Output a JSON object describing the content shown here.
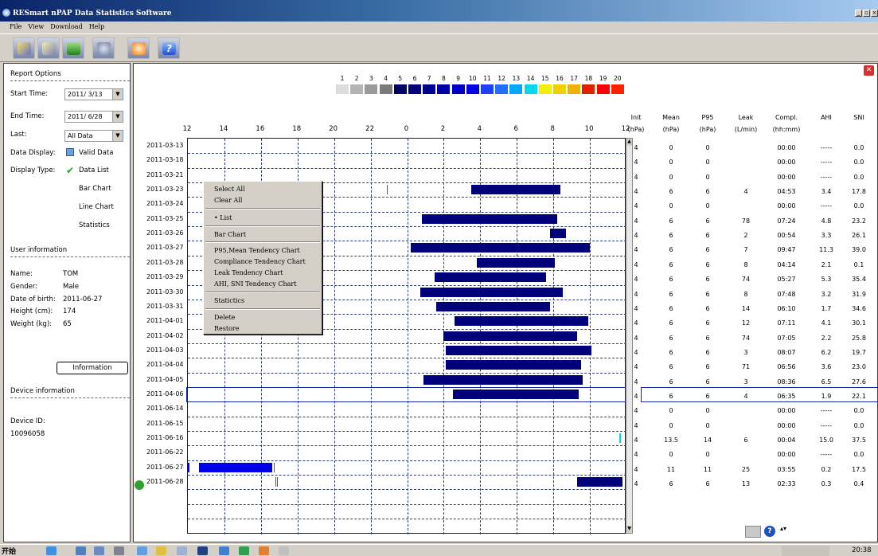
{
  "window": {
    "title": "RESmart nPAP Data Statistics Software"
  },
  "menu": [
    "File",
    "View",
    "Download",
    "Help"
  ],
  "toolbar": [
    {
      "icon": "import-icon"
    },
    {
      "icon": "export-icon"
    },
    {
      "icon": "download-icon"
    },
    {
      "icon": "settings-icon"
    },
    {
      "icon": "refresh-icon"
    },
    {
      "icon": "help-icon"
    }
  ],
  "left": {
    "report_options": "Report Options",
    "start_label": "Start Time:",
    "start_value": "2011/ 3/13",
    "end_label": "End Time:",
    "end_value": "2011/ 6/28",
    "last_label": "Last:",
    "last_value": "All Data",
    "display_data_label": "Data Display:",
    "display_data_value": "Valid Data",
    "display_type_label": "Display Type:",
    "display_types": [
      "Data List",
      "Bar Chart",
      "Line Chart",
      "Statistics"
    ],
    "user_info": "User information",
    "name_label": "Name:",
    "name_value": "TOM",
    "gender_label": "Gender:",
    "gender_value": "Male",
    "dob_label": "Date of birth:",
    "dob_value": "2011-06-27",
    "height_label": "Height (cm):",
    "height_value": "174",
    "weight_label": "Weight (kg):",
    "weight_value": "65",
    "info_button": "Information",
    "device_info": "Device information",
    "device_id_label": "Device ID:",
    "device_id_value": "10096058"
  },
  "legend": {
    "numbers": [
      "1",
      "2",
      "3",
      "4",
      "5",
      "6",
      "7",
      "8",
      "9",
      "10",
      "11",
      "12",
      "13",
      "14",
      "15",
      "16",
      "17",
      "18",
      "19",
      "20"
    ],
    "colors": [
      "#dcdcdc",
      "#b4b4b4",
      "#9a9a9a",
      "#7a7a7a",
      "#000066",
      "#00007a",
      "#000090",
      "#0000a8",
      "#0000c8",
      "#0000e8",
      "#2040ff",
      "#2070ff",
      "#00a8ff",
      "#00d8f0",
      "#f0f000",
      "#f0d000",
      "#f0b000",
      "#e02000",
      "#ff0000",
      "#ff2000"
    ]
  },
  "chart": {
    "ticks": [
      "12",
      "14",
      "16",
      "18",
      "20",
      "22",
      "0",
      "2",
      "4",
      "6",
      "8",
      "10",
      "12"
    ]
  },
  "table": {
    "headers": [
      [
        "Init",
        "(hPa)"
      ],
      [
        "Mean",
        "(hPa)"
      ],
      [
        "P95",
        "(hPa)"
      ],
      [
        "Leak",
        "(L/min)"
      ],
      [
        "Compl.",
        "(hh:mm)"
      ],
      [
        "AHI",
        ""
      ],
      [
        "SNI",
        ""
      ]
    ],
    "rows": [
      {
        "date": "2011-03-13",
        "init": "4",
        "mean": "0",
        "p95": "0",
        "leak": "",
        "compl": "00:00",
        "ahi": "-----",
        "sni": "0.0"
      },
      {
        "date": "2011-03-18",
        "init": "4",
        "mean": "0",
        "p95": "0",
        "leak": "",
        "compl": "00:00",
        "ahi": "-----",
        "sni": "0.0"
      },
      {
        "date": "2011-03-21",
        "init": "4",
        "mean": "0",
        "p95": "0",
        "leak": "",
        "compl": "00:00",
        "ahi": "-----",
        "sni": "0.0"
      },
      {
        "date": "2011-03-23",
        "init": "4",
        "mean": "6",
        "p95": "6",
        "leak": "4",
        "compl": "04:53",
        "ahi": "3.4",
        "sni": "17.8"
      },
      {
        "date": "2011-03-24",
        "init": "4",
        "mean": "0",
        "p95": "0",
        "leak": "",
        "compl": "00:00",
        "ahi": "-----",
        "sni": "0.0"
      },
      {
        "date": "2011-03-25",
        "init": "4",
        "mean": "6",
        "p95": "6",
        "leak": "78",
        "compl": "07:24",
        "ahi": "4.8",
        "sni": "23.2"
      },
      {
        "date": "2011-03-26",
        "init": "4",
        "mean": "6",
        "p95": "6",
        "leak": "2",
        "compl": "00:54",
        "ahi": "3.3",
        "sni": "26.1"
      },
      {
        "date": "2011-03-27",
        "init": "4",
        "mean": "6",
        "p95": "6",
        "leak": "7",
        "compl": "09:47",
        "ahi": "11.3",
        "sni": "39.0"
      },
      {
        "date": "2011-03-28",
        "init": "4",
        "mean": "6",
        "p95": "6",
        "leak": "8",
        "compl": "04:14",
        "ahi": "2.1",
        "sni": "0.1"
      },
      {
        "date": "2011-03-29",
        "init": "4",
        "mean": "6",
        "p95": "6",
        "leak": "74",
        "compl": "05:27",
        "ahi": "5.3",
        "sni": "35.4"
      },
      {
        "date": "2011-03-30",
        "init": "4",
        "mean": "6",
        "p95": "6",
        "leak": "8",
        "compl": "07:48",
        "ahi": "3.2",
        "sni": "31.9"
      },
      {
        "date": "2011-03-31",
        "init": "4",
        "mean": "6",
        "p95": "6",
        "leak": "14",
        "compl": "06:10",
        "ahi": "1.7",
        "sni": "34.6"
      },
      {
        "date": "2011-04-01",
        "init": "4",
        "mean": "6",
        "p95": "6",
        "leak": "12",
        "compl": "07:11",
        "ahi": "4.1",
        "sni": "30.1"
      },
      {
        "date": "2011-04-02",
        "init": "4",
        "mean": "6",
        "p95": "6",
        "leak": "74",
        "compl": "07:05",
        "ahi": "2.2",
        "sni": "25.8"
      },
      {
        "date": "2011-04-03",
        "init": "4",
        "mean": "6",
        "p95": "6",
        "leak": "3",
        "compl": "08:07",
        "ahi": "6.2",
        "sni": "19.7"
      },
      {
        "date": "2011-04-04",
        "init": "4",
        "mean": "6",
        "p95": "6",
        "leak": "71",
        "compl": "06:56",
        "ahi": "3.6",
        "sni": "23.0"
      },
      {
        "date": "2011-04-05",
        "init": "4",
        "mean": "6",
        "p95": "6",
        "leak": "3",
        "compl": "08:36",
        "ahi": "6.5",
        "sni": "27.6"
      },
      {
        "date": "2011-04-06",
        "init": "4",
        "mean": "6",
        "p95": "6",
        "leak": "4",
        "compl": "06:35",
        "ahi": "1.9",
        "sni": "22.1"
      },
      {
        "date": "2011-06-14",
        "init": "4",
        "mean": "0",
        "p95": "0",
        "leak": "",
        "compl": "00:00",
        "ahi": "-----",
        "sni": "0.0"
      },
      {
        "date": "2011-06-15",
        "init": "4",
        "mean": "0",
        "p95": "0",
        "leak": "",
        "compl": "00:00",
        "ahi": "-----",
        "sni": "0.0"
      },
      {
        "date": "2011-06-16",
        "init": "4",
        "mean": "13.5",
        "p95": "14",
        "leak": "6",
        "compl": "00:04",
        "ahi": "15.0",
        "sni": "37.5"
      },
      {
        "date": "2011-06-22",
        "init": "4",
        "mean": "0",
        "p95": "0",
        "leak": "",
        "compl": "00:00",
        "ahi": "-----",
        "sni": "0.0"
      },
      {
        "date": "2011-06-27",
        "init": "4",
        "mean": "11",
        "p95": "11",
        "leak": "25",
        "compl": "03:55",
        "ahi": "0.2",
        "sni": "17.5"
      },
      {
        "date": "2011-06-28",
        "init": "4",
        "mean": "6",
        "p95": "6",
        "leak": "13",
        "compl": "02:33",
        "ahi": "0.3",
        "sni": "0.4"
      }
    ]
  },
  "context_menu": [
    "Select All",
    "Clear All",
    "List",
    "Bar Chart",
    "P95,Mean Tendency Chart",
    "Compliance Tendency Chart",
    "Leak Tendency Chart",
    "AHI, SNI Tendency Chart",
    "Statictics",
    "Delete",
    "Restore"
  ],
  "taskbar": {
    "start": "开始",
    "clock": "20:38"
  }
}
